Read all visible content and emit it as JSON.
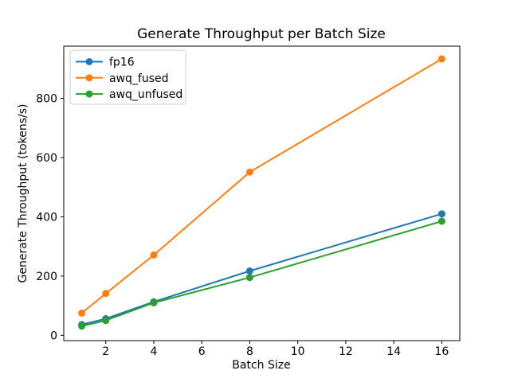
{
  "figure": {
    "background": "#ffffff",
    "text_color": "#000000",
    "spine_color": "#000000",
    "legend_border_color": "#cccccc"
  },
  "chart_data": {
    "type": "line",
    "title": "Generate Throughput per Batch Size",
    "xlabel": "Batch Size",
    "ylabel": "Generate Throughput (tokens/s)",
    "x": [
      1,
      2,
      4,
      8,
      16
    ],
    "series": [
      {
        "name": "fp16",
        "color": "#1f77b4",
        "values": [
          36,
          56,
          113,
          217,
          410
        ]
      },
      {
        "name": "awq_fused",
        "color": "#ff7f0e",
        "values": [
          75,
          141,
          271,
          551,
          933
        ]
      },
      {
        "name": "awq_unfused",
        "color": "#2ca02c",
        "values": [
          31,
          50,
          110,
          195,
          385
        ]
      }
    ],
    "xticks": [
      2,
      4,
      6,
      8,
      10,
      12,
      14,
      16
    ],
    "yticks": [
      0,
      200,
      400,
      600,
      800
    ],
    "xlim": [
      0.25,
      16.75
    ],
    "ylim": [
      -18,
      976
    ],
    "grid": false,
    "marker": "o",
    "legend_position": "upper left"
  }
}
